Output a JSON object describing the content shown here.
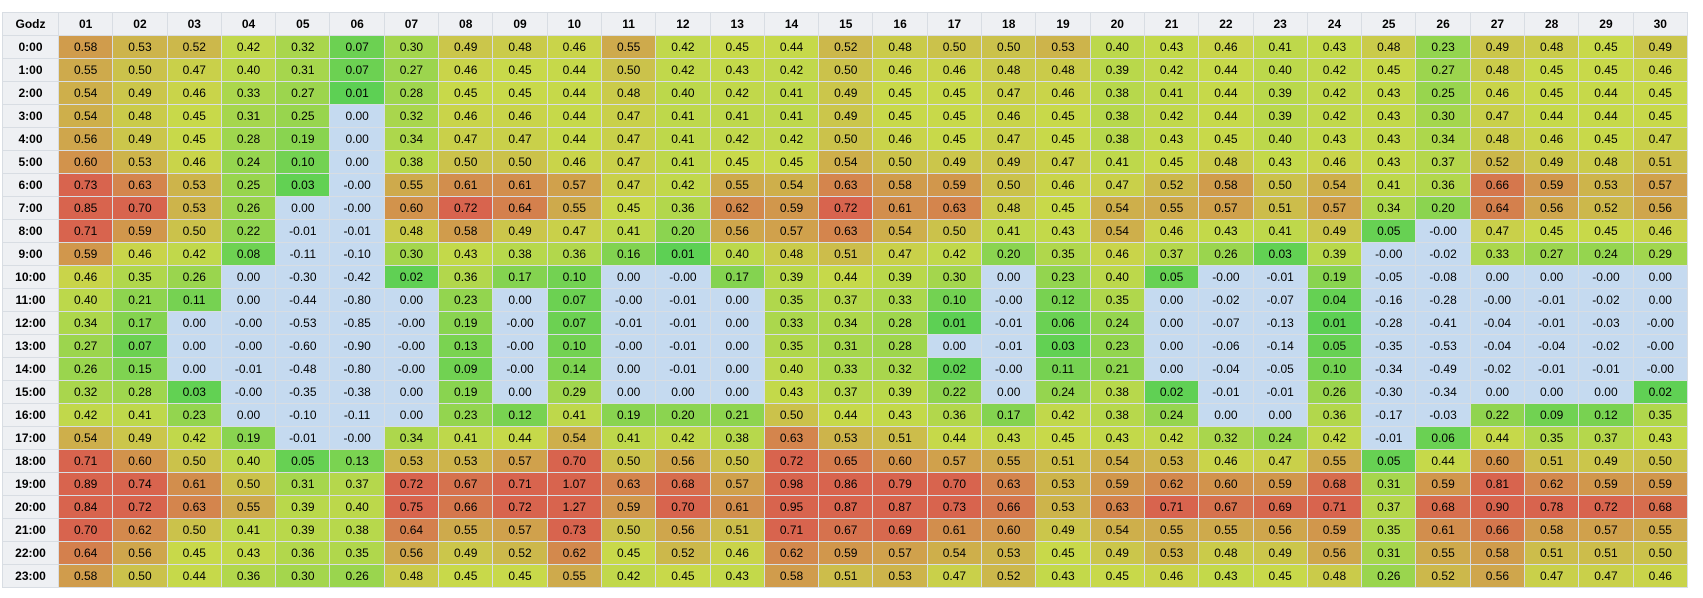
{
  "chart_data": {
    "type": "heatmap",
    "corner_label": "Godz",
    "columns": [
      "01",
      "02",
      "03",
      "04",
      "05",
      "06",
      "07",
      "08",
      "09",
      "10",
      "11",
      "12",
      "13",
      "14",
      "15",
      "16",
      "17",
      "18",
      "19",
      "20",
      "21",
      "22",
      "23",
      "24",
      "25",
      "26",
      "27",
      "28",
      "29",
      "30"
    ],
    "rows": [
      "0:00",
      "1:00",
      "2:00",
      "3:00",
      "4:00",
      "5:00",
      "6:00",
      "7:00",
      "8:00",
      "9:00",
      "10:00",
      "11:00",
      "12:00",
      "13:00",
      "14:00",
      "15:00",
      "16:00",
      "17:00",
      "18:00",
      "19:00",
      "20:00",
      "21:00",
      "22:00",
      "23:00"
    ],
    "values": [
      [
        "0.58",
        "0.53",
        "0.52",
        "0.42",
        "0.32",
        "0.07",
        "0.30",
        "0.49",
        "0.48",
        "0.46",
        "0.55",
        "0.42",
        "0.45",
        "0.44",
        "0.52",
        "0.48",
        "0.50",
        "0.50",
        "0.53",
        "0.40",
        "0.43",
        "0.46",
        "0.41",
        "0.43",
        "0.48",
        "0.23",
        "0.49",
        "0.48",
        "0.45",
        "0.49"
      ],
      [
        "0.55",
        "0.50",
        "0.47",
        "0.40",
        "0.31",
        "0.07",
        "0.27",
        "0.46",
        "0.45",
        "0.44",
        "0.50",
        "0.42",
        "0.43",
        "0.42",
        "0.50",
        "0.46",
        "0.46",
        "0.48",
        "0.48",
        "0.39",
        "0.42",
        "0.44",
        "0.40",
        "0.42",
        "0.45",
        "0.27",
        "0.48",
        "0.45",
        "0.45",
        "0.46"
      ],
      [
        "0.54",
        "0.49",
        "0.46",
        "0.33",
        "0.27",
        "0.01",
        "0.28",
        "0.45",
        "0.45",
        "0.44",
        "0.48",
        "0.40",
        "0.42",
        "0.41",
        "0.49",
        "0.45",
        "0.45",
        "0.47",
        "0.46",
        "0.38",
        "0.41",
        "0.44",
        "0.39",
        "0.42",
        "0.43",
        "0.25",
        "0.46",
        "0.45",
        "0.44",
        "0.45"
      ],
      [
        "0.54",
        "0.48",
        "0.45",
        "0.31",
        "0.25",
        "0.00",
        "0.32",
        "0.46",
        "0.46",
        "0.44",
        "0.47",
        "0.41",
        "0.41",
        "0.41",
        "0.49",
        "0.45",
        "0.45",
        "0.46",
        "0.45",
        "0.38",
        "0.42",
        "0.44",
        "0.39",
        "0.42",
        "0.43",
        "0.30",
        "0.47",
        "0.44",
        "0.44",
        "0.45"
      ],
      [
        "0.56",
        "0.49",
        "0.45",
        "0.28",
        "0.19",
        "0.00",
        "0.34",
        "0.47",
        "0.47",
        "0.44",
        "0.47",
        "0.41",
        "0.42",
        "0.42",
        "0.50",
        "0.46",
        "0.45",
        "0.47",
        "0.45",
        "0.38",
        "0.43",
        "0.45",
        "0.40",
        "0.43",
        "0.43",
        "0.34",
        "0.48",
        "0.46",
        "0.45",
        "0.47"
      ],
      [
        "0.60",
        "0.53",
        "0.46",
        "0.24",
        "0.10",
        "0.00",
        "0.38",
        "0.50",
        "0.50",
        "0.46",
        "0.47",
        "0.41",
        "0.45",
        "0.45",
        "0.54",
        "0.50",
        "0.49",
        "0.49",
        "0.47",
        "0.41",
        "0.45",
        "0.48",
        "0.43",
        "0.46",
        "0.43",
        "0.37",
        "0.52",
        "0.49",
        "0.48",
        "0.51"
      ],
      [
        "0.73",
        "0.63",
        "0.53",
        "0.25",
        "0.03",
        "-0.00",
        "0.55",
        "0.61",
        "0.61",
        "0.57",
        "0.47",
        "0.42",
        "0.55",
        "0.54",
        "0.63",
        "0.58",
        "0.59",
        "0.50",
        "0.46",
        "0.47",
        "0.52",
        "0.58",
        "0.50",
        "0.54",
        "0.41",
        "0.36",
        "0.66",
        "0.59",
        "0.53",
        "0.57"
      ],
      [
        "0.85",
        "0.70",
        "0.53",
        "0.26",
        "0.00",
        "-0.00",
        "0.60",
        "0.72",
        "0.64",
        "0.55",
        "0.45",
        "0.36",
        "0.62",
        "0.59",
        "0.72",
        "0.61",
        "0.63",
        "0.48",
        "0.45",
        "0.54",
        "0.55",
        "0.57",
        "0.51",
        "0.57",
        "0.34",
        "0.20",
        "0.64",
        "0.56",
        "0.52",
        "0.56"
      ],
      [
        "0.71",
        "0.59",
        "0.50",
        "0.22",
        "-0.01",
        "-0.01",
        "0.48",
        "0.58",
        "0.49",
        "0.47",
        "0.41",
        "0.20",
        "0.56",
        "0.57",
        "0.63",
        "0.54",
        "0.50",
        "0.41",
        "0.43",
        "0.54",
        "0.46",
        "0.43",
        "0.41",
        "0.49",
        "0.05",
        "-0.00",
        "0.47",
        "0.45",
        "0.45",
        "0.46"
      ],
      [
        "0.59",
        "0.46",
        "0.42",
        "0.08",
        "-0.11",
        "-0.10",
        "0.30",
        "0.43",
        "0.38",
        "0.36",
        "0.16",
        "0.01",
        "0.40",
        "0.48",
        "0.51",
        "0.47",
        "0.42",
        "0.20",
        "0.35",
        "0.46",
        "0.37",
        "0.26",
        "0.03",
        "0.39",
        "-0.00",
        "-0.02",
        "0.33",
        "0.27",
        "0.24",
        "0.29"
      ],
      [
        "0.46",
        "0.35",
        "0.26",
        "0.00",
        "-0.30",
        "-0.42",
        "0.02",
        "0.36",
        "0.17",
        "0.10",
        "0.00",
        "-0.00",
        "0.17",
        "0.39",
        "0.44",
        "0.39",
        "0.30",
        "0.00",
        "0.23",
        "0.40",
        "0.05",
        "-0.00",
        "-0.01",
        "0.19",
        "-0.05",
        "-0.08",
        "0.00",
        "0.00",
        "-0.00",
        "0.00"
      ],
      [
        "0.40",
        "0.21",
        "0.11",
        "0.00",
        "-0.44",
        "-0.80",
        "0.00",
        "0.23",
        "0.00",
        "0.07",
        "-0.00",
        "-0.01",
        "0.00",
        "0.35",
        "0.37",
        "0.33",
        "0.10",
        "-0.00",
        "0.12",
        "0.35",
        "0.00",
        "-0.02",
        "-0.07",
        "0.04",
        "-0.16",
        "-0.28",
        "-0.00",
        "-0.01",
        "-0.02",
        "0.00"
      ],
      [
        "0.34",
        "0.17",
        "0.00",
        "-0.00",
        "-0.53",
        "-0.85",
        "-0.00",
        "0.19",
        "-0.00",
        "0.07",
        "-0.01",
        "-0.01",
        "0.00",
        "0.33",
        "0.34",
        "0.28",
        "0.01",
        "-0.01",
        "0.06",
        "0.24",
        "0.00",
        "-0.07",
        "-0.13",
        "0.01",
        "-0.28",
        "-0.41",
        "-0.04",
        "-0.01",
        "-0.03",
        "-0.00"
      ],
      [
        "0.27",
        "0.07",
        "0.00",
        "-0.00",
        "-0.60",
        "-0.90",
        "-0.00",
        "0.13",
        "-0.00",
        "0.10",
        "-0.00",
        "-0.01",
        "0.00",
        "0.35",
        "0.31",
        "0.28",
        "0.00",
        "-0.01",
        "0.03",
        "0.23",
        "0.00",
        "-0.06",
        "-0.14",
        "0.05",
        "-0.35",
        "-0.53",
        "-0.04",
        "-0.04",
        "-0.02",
        "-0.00"
      ],
      [
        "0.26",
        "0.15",
        "0.00",
        "-0.01",
        "-0.48",
        "-0.80",
        "-0.00",
        "0.09",
        "-0.00",
        "0.14",
        "0.00",
        "-0.01",
        "0.00",
        "0.40",
        "0.33",
        "0.32",
        "0.02",
        "-0.00",
        "0.11",
        "0.21",
        "0.00",
        "-0.04",
        "-0.05",
        "0.10",
        "-0.34",
        "-0.49",
        "-0.02",
        "-0.01",
        "-0.01",
        "-0.00"
      ],
      [
        "0.32",
        "0.28",
        "0.03",
        "-0.00",
        "-0.35",
        "-0.38",
        "0.00",
        "0.19",
        "0.00",
        "0.29",
        "0.00",
        "0.00",
        "0.00",
        "0.43",
        "0.37",
        "0.39",
        "0.22",
        "0.00",
        "0.24",
        "0.38",
        "0.02",
        "-0.01",
        "-0.01",
        "0.26",
        "-0.30",
        "-0.34",
        "0.00",
        "0.00",
        "0.00",
        "0.02"
      ],
      [
        "0.42",
        "0.41",
        "0.23",
        "0.00",
        "-0.10",
        "-0.11",
        "0.00",
        "0.23",
        "0.12",
        "0.41",
        "0.19",
        "0.20",
        "0.21",
        "0.50",
        "0.44",
        "0.43",
        "0.36",
        "0.17",
        "0.42",
        "0.38",
        "0.24",
        "0.00",
        "0.00",
        "0.36",
        "-0.17",
        "-0.03",
        "0.22",
        "0.09",
        "0.12",
        "0.35"
      ],
      [
        "0.54",
        "0.49",
        "0.42",
        "0.19",
        "-0.01",
        "-0.00",
        "0.34",
        "0.41",
        "0.44",
        "0.54",
        "0.41",
        "0.42",
        "0.38",
        "0.63",
        "0.53",
        "0.51",
        "0.44",
        "0.43",
        "0.45",
        "0.43",
        "0.42",
        "0.32",
        "0.24",
        "0.42",
        "-0.01",
        "0.06",
        "0.44",
        "0.35",
        "0.37",
        "0.43"
      ],
      [
        "0.71",
        "0.60",
        "0.50",
        "0.40",
        "0.05",
        "0.13",
        "0.53",
        "0.53",
        "0.57",
        "0.70",
        "0.50",
        "0.56",
        "0.50",
        "0.72",
        "0.65",
        "0.60",
        "0.57",
        "0.55",
        "0.51",
        "0.54",
        "0.53",
        "0.46",
        "0.47",
        "0.55",
        "0.05",
        "0.44",
        "0.60",
        "0.51",
        "0.49",
        "0.50"
      ],
      [
        "0.89",
        "0.74",
        "0.61",
        "0.50",
        "0.31",
        "0.37",
        "0.72",
        "0.67",
        "0.71",
        "1.07",
        "0.63",
        "0.68",
        "0.57",
        "0.98",
        "0.86",
        "0.79",
        "0.70",
        "0.63",
        "0.53",
        "0.59",
        "0.62",
        "0.60",
        "0.59",
        "0.68",
        "0.31",
        "0.59",
        "0.81",
        "0.62",
        "0.59",
        "0.59"
      ],
      [
        "0.84",
        "0.72",
        "0.63",
        "0.55",
        "0.39",
        "0.40",
        "0.75",
        "0.66",
        "0.72",
        "1.27",
        "0.59",
        "0.70",
        "0.61",
        "0.95",
        "0.87",
        "0.87",
        "0.73",
        "0.66",
        "0.53",
        "0.63",
        "0.71",
        "0.67",
        "0.69",
        "0.71",
        "0.37",
        "0.68",
        "0.90",
        "0.78",
        "0.72",
        "0.68"
      ],
      [
        "0.70",
        "0.62",
        "0.50",
        "0.41",
        "0.39",
        "0.38",
        "0.64",
        "0.55",
        "0.57",
        "0.73",
        "0.50",
        "0.56",
        "0.51",
        "0.71",
        "0.67",
        "0.69",
        "0.61",
        "0.60",
        "0.49",
        "0.54",
        "0.55",
        "0.55",
        "0.56",
        "0.59",
        "0.35",
        "0.61",
        "0.66",
        "0.58",
        "0.57",
        "0.55"
      ],
      [
        "0.64",
        "0.56",
        "0.45",
        "0.43",
        "0.36",
        "0.35",
        "0.56",
        "0.49",
        "0.52",
        "0.62",
        "0.45",
        "0.52",
        "0.46",
        "0.62",
        "0.59",
        "0.57",
        "0.54",
        "0.53",
        "0.45",
        "0.49",
        "0.53",
        "0.48",
        "0.49",
        "0.56",
        "0.31",
        "0.55",
        "0.58",
        "0.51",
        "0.51",
        "0.50"
      ],
      [
        "0.58",
        "0.50",
        "0.44",
        "0.36",
        "0.30",
        "0.26",
        "0.48",
        "0.45",
        "0.45",
        "0.55",
        "0.42",
        "0.45",
        "0.43",
        "0.58",
        "0.51",
        "0.53",
        "0.47",
        "0.52",
        "0.43",
        "0.45",
        "0.46",
        "0.43",
        "0.45",
        "0.48",
        "0.26",
        "0.52",
        "0.56",
        "0.47",
        "0.47",
        "0.46"
      ]
    ],
    "color_scale": {
      "nonpositive": "#c5daf0",
      "low": "#5bd054",
      "mid": "#c8d94a",
      "high": "#d8644e"
    }
  }
}
